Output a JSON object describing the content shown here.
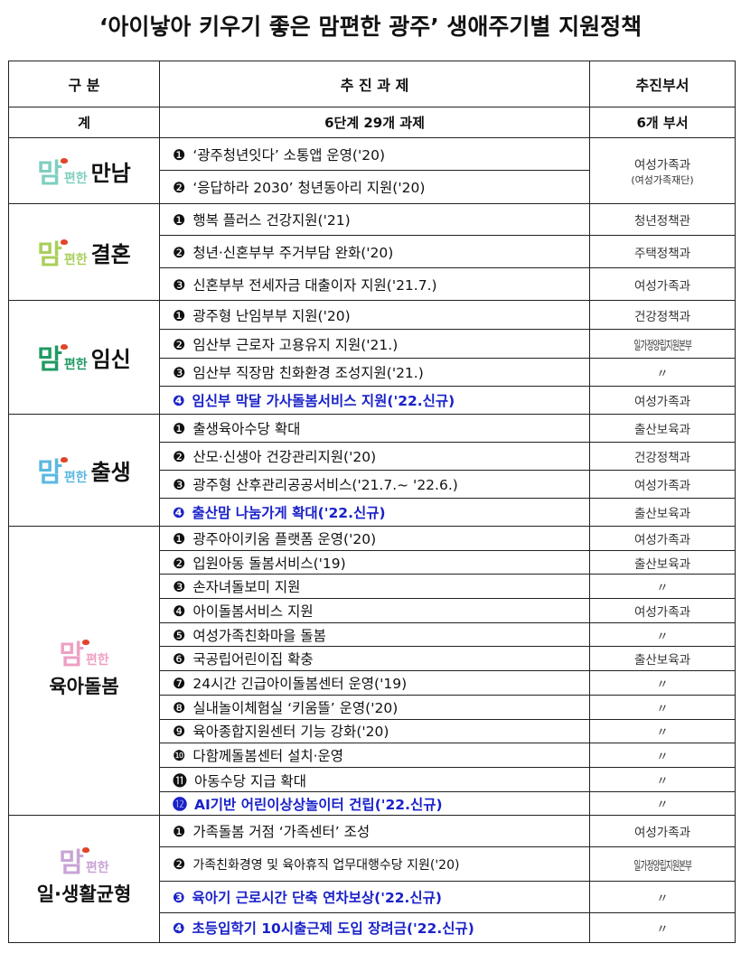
{
  "title": "‘아이낳아 키우기 좋은 맘편한 광주’ 생애주기별 지원정책",
  "headers": {
    "category": "구   분",
    "task": "추 진 과 제",
    "dept": "추진부서"
  },
  "total": {
    "category": "계",
    "task": "6단계 29개 과제",
    "dept": "6개 부서"
  },
  "logo_prefix": "맘",
  "logo_mid": "편한",
  "groups": [
    {
      "word": "만남",
      "color": "#7ecfbf",
      "rows": [
        {
          "num": "❶",
          "text": "‘광주청년잇다’ 소통앱 운영('20)",
          "new": false,
          "dept": "여성가족과",
          "dept_sub": "(여성가족재단)"
        },
        {
          "num": "❷",
          "text": "‘응답하라 2030’ 청년동아리 지원('20)",
          "new": false
        }
      ]
    },
    {
      "word": "결혼",
      "color": "#a9cf5a",
      "rows": [
        {
          "num": "❶",
          "text": "행복 플러스 건강지원('21)",
          "new": false,
          "dept": "청년정책관"
        },
        {
          "num": "❷",
          "text": "청년·신혼부부 주거부담 완화('20)",
          "new": false,
          "dept": "주택정책과"
        },
        {
          "num": "❸",
          "text": "신혼부부 전세자금 대출이자 지원('21.7.)",
          "new": false,
          "dept": "여성가족과"
        }
      ]
    },
    {
      "word": "임신",
      "color": "#1f9a62",
      "rows": [
        {
          "num": "❶",
          "text": "광주형 난임부부 지원('20)",
          "new": false,
          "dept": "건강정책과"
        },
        {
          "num": "❷",
          "text": "임산부 근로자 고용유지 지원('21.)",
          "new": false,
          "dept": "일가정양립지원본부",
          "condensed": true
        },
        {
          "num": "❸",
          "text": "임산부 직장맘 친화환경 조성지원('21.)",
          "new": false,
          "dept": "〃"
        },
        {
          "num": "❹",
          "text": "임신부 막달 가사돌봄서비스 지원('22.신규)",
          "new": true,
          "dept": "여성가족과"
        }
      ]
    },
    {
      "word": "출생",
      "color": "#5bb8e0",
      "rows": [
        {
          "num": "❶",
          "text": "출생육아수당 확대",
          "new": false,
          "dept": "출산보육과"
        },
        {
          "num": "❷",
          "text": "산모·신생아 건강관리지원('20)",
          "new": false,
          "dept": "건강정책과"
        },
        {
          "num": "❸",
          "text": "광주형 산후관리공공서비스('21.7.~ '22.6.)",
          "new": false,
          "dept": "여성가족과"
        },
        {
          "num": "❹",
          "text": "출산맘 나눔가게 확대('22.신규)",
          "new": true,
          "dept": "출산보육과"
        }
      ]
    },
    {
      "word": "육아돌봄",
      "color": "#eea0c4",
      "stack": true,
      "rows": [
        {
          "num": "❶",
          "text": "광주아이키움 플랫폼 운영('20)",
          "new": false,
          "dept": "여성가족과"
        },
        {
          "num": "❷",
          "text": "입원아동 돌봄서비스('19)",
          "new": false,
          "dept": "출산보육과"
        },
        {
          "num": "❸",
          "text": "손자녀돌보미 지원",
          "new": false,
          "dept": "〃"
        },
        {
          "num": "❹",
          "text": "아이돌봄서비스 지원",
          "new": false,
          "dept": "여성가족과"
        },
        {
          "num": "❺",
          "text": "여성가족친화마을 돌봄",
          "new": false,
          "dept": "〃"
        },
        {
          "num": "❻",
          "text": "국공립어린이집 확충",
          "new": false,
          "dept": "출산보육과"
        },
        {
          "num": "❼",
          "text": "24시간 긴급아이돌봄센터 운영('19)",
          "new": false,
          "dept": "〃"
        },
        {
          "num": "❽",
          "text": "실내놀이체험실 ‘키움뜰’ 운영('20)",
          "new": false,
          "dept": "〃"
        },
        {
          "num": "❾",
          "text": "육아종합지원센터 기능 강화('20)",
          "new": false,
          "dept": "〃"
        },
        {
          "num": "❿",
          "text": "다함께돌봄센터 설치·운영",
          "new": false,
          "dept": "〃"
        },
        {
          "num": "⓫",
          "text": "아동수당 지급 확대",
          "new": false,
          "dept": "〃"
        },
        {
          "num": "⓬",
          "text": "AI기반 어린이상상놀이터 건립('22.신규)",
          "new": true,
          "dept": "〃"
        }
      ]
    },
    {
      "word": "일·생활균형",
      "color": "#c9a3d6",
      "stack": true,
      "rows": [
        {
          "num": "❶",
          "text": "가족돌봄 거점 ‘가족센터’ 조성",
          "new": false,
          "dept": "여성가족과"
        },
        {
          "num": "❷",
          "text": "가족친화경영 및 육아휴직 업무대행수당 지원('20)",
          "new": false,
          "dept": "일가정양립지원본부",
          "condensed": true,
          "small": true
        },
        {
          "num": "❸",
          "text": "육아기 근로시간 단축 연차보상('22.신규)",
          "new": true,
          "dept": "〃"
        },
        {
          "num": "❹",
          "text": "초등입학기 10시출근제 도입 장려금('22.신규)",
          "new": true,
          "dept": "〃"
        }
      ]
    }
  ]
}
